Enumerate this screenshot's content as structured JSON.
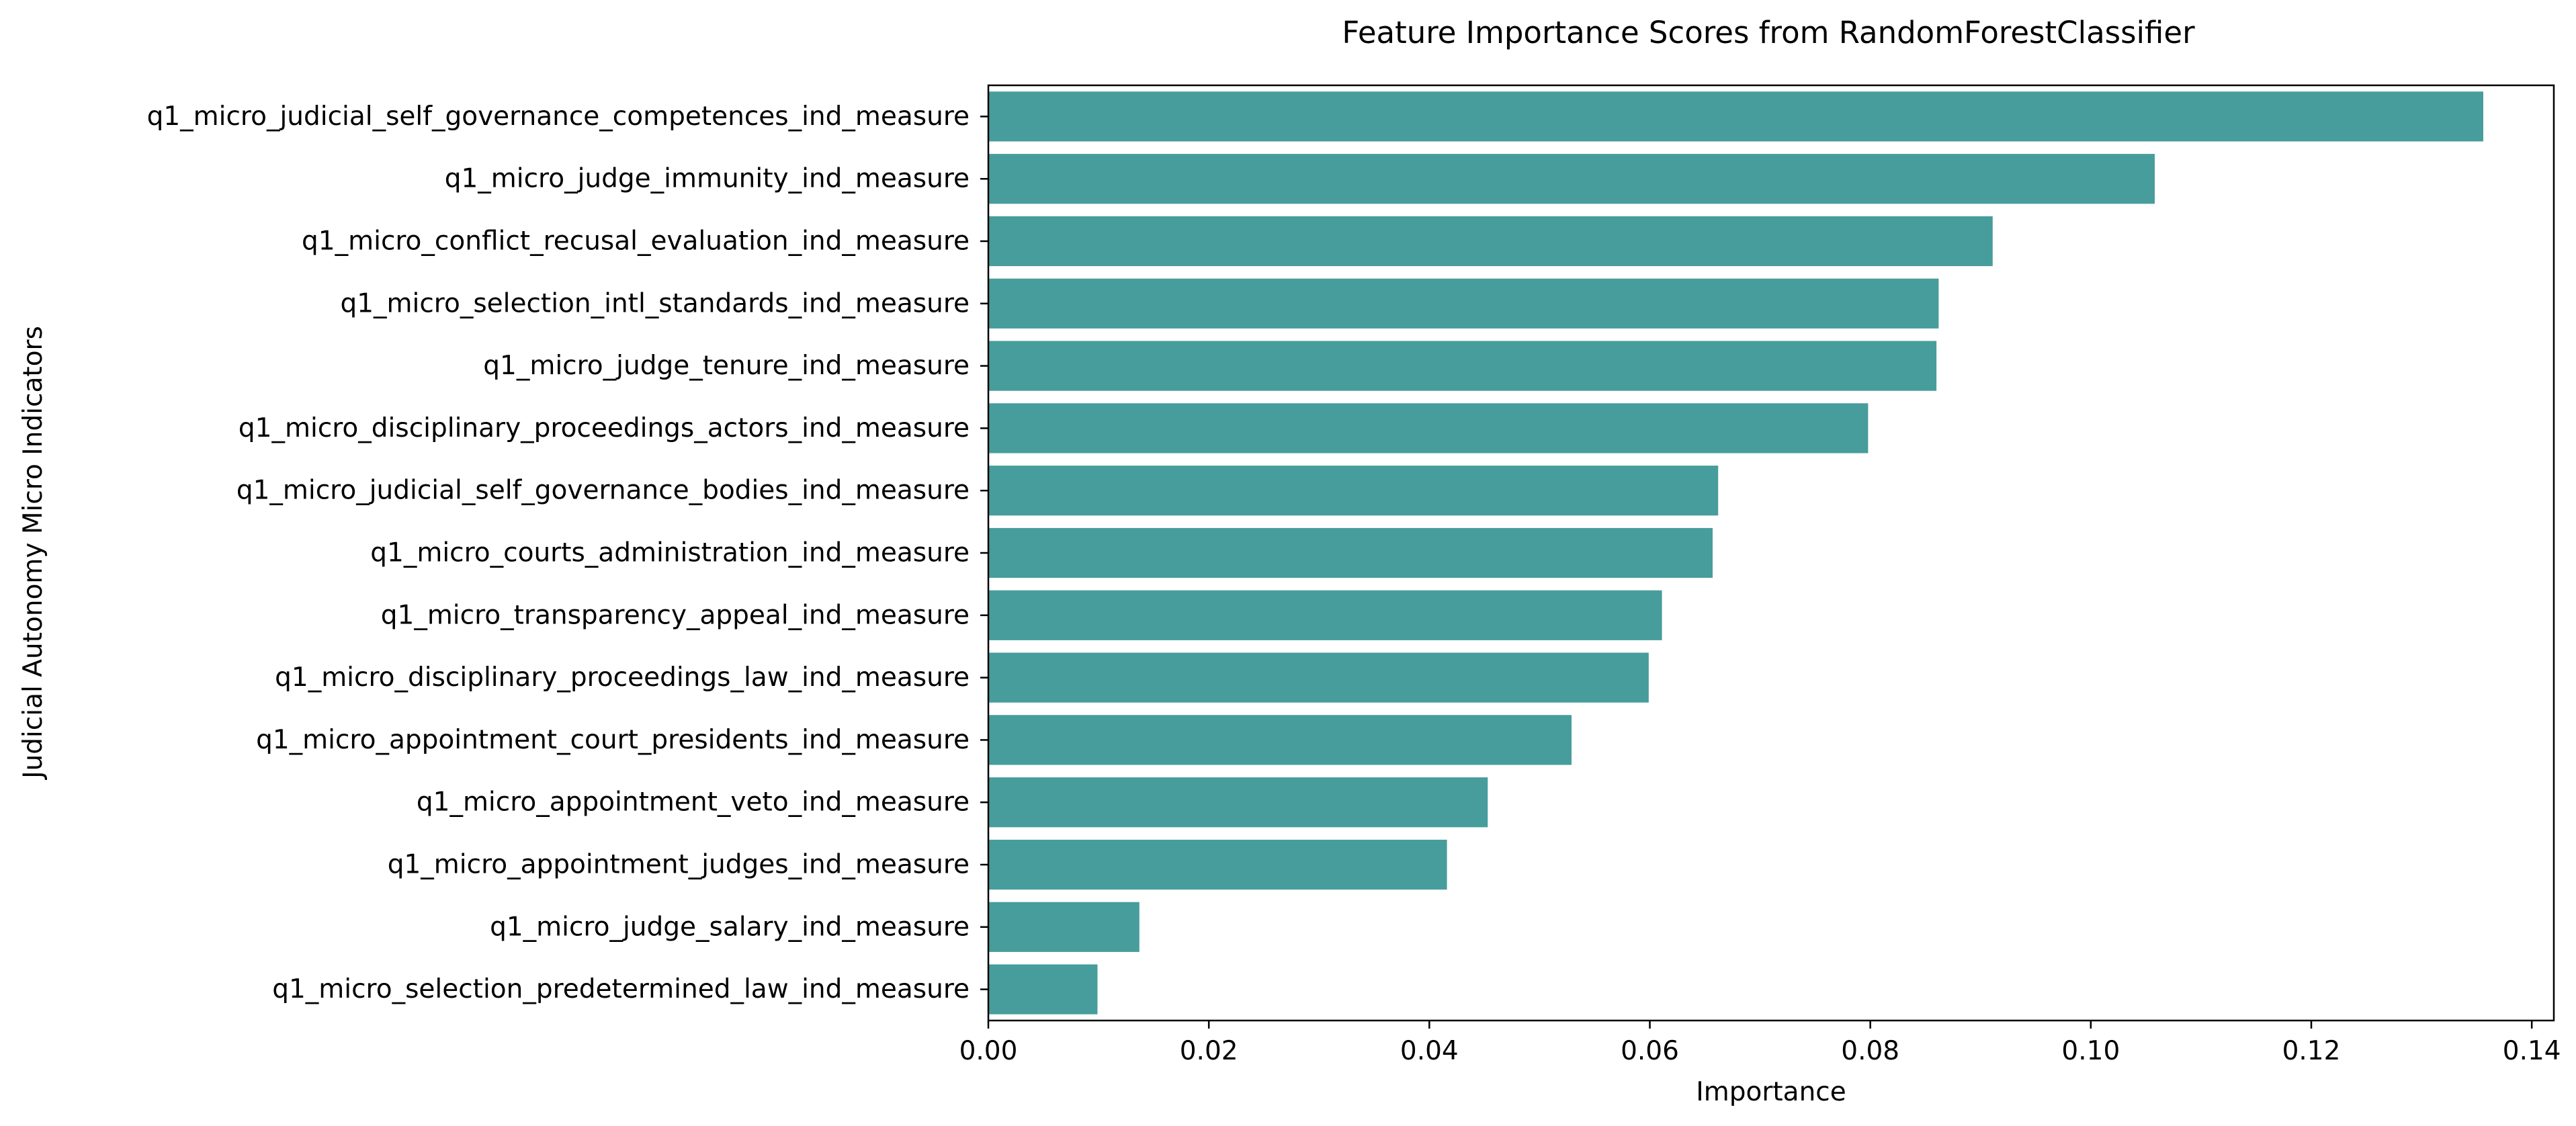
{
  "chart_data": {
    "type": "bar",
    "orientation": "horizontal",
    "title": "Feature Importance Scores from RandomForestClassifier",
    "xlabel": "Importance",
    "ylabel": "Judicial Autonomy Micro Indicators",
    "xlim": [
      0,
      0.142
    ],
    "xticks": [
      "0.00",
      "0.02",
      "0.04",
      "0.06",
      "0.08",
      "0.10",
      "0.12",
      "0.14"
    ],
    "grid": false,
    "legend": "none",
    "bar_color": "#479d9b",
    "categories": [
      "q1_micro_judicial_self_governance_competences_ind_measure",
      "q1_micro_judge_immunity_ind_measure",
      "q1_micro_conflict_recusal_evaluation_ind_measure",
      "q1_micro_selection_intl_standards_ind_measure",
      "q1_micro_judge_tenure_ind_measure",
      "q1_micro_disciplinary_proceedings_actors_ind_measure",
      "q1_micro_judicial_self_governance_bodies_ind_measure",
      "q1_micro_courts_administration_ind_measure",
      "q1_micro_transparency_appeal_ind_measure",
      "q1_micro_disciplinary_proceedings_law_ind_measure",
      "q1_micro_appointment_court_presidents_ind_measure",
      "q1_micro_appointment_veto_ind_measure",
      "q1_micro_appointment_judges_ind_measure",
      "q1_micro_judge_salary_ind_measure",
      "q1_micro_selection_predetermined_law_ind_measure"
    ],
    "values": [
      0.1356,
      0.1058,
      0.0911,
      0.0862,
      0.086,
      0.0798,
      0.0662,
      0.0657,
      0.0611,
      0.0599,
      0.0529,
      0.0453,
      0.0416,
      0.0137,
      0.0099
    ]
  }
}
